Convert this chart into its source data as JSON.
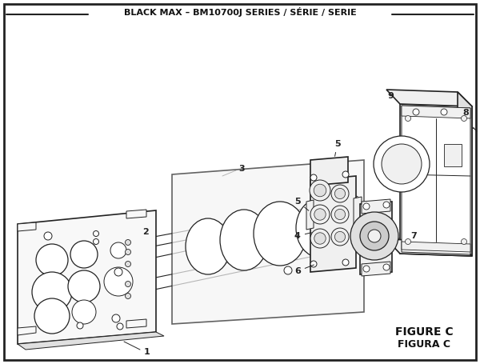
{
  "title": "BLACK MAX – BM10700J SERIES / SÉRIE / SERIE",
  "bg_color": "#ffffff",
  "border_color": "#222222",
  "text_color": "#111111",
  "figure_label": "FIGURE C",
  "figure_label2": "FIGURA C",
  "line_color": "#222222",
  "dark_gray": "#222222",
  "fill_light": "#f0f0f0",
  "fill_mid": "#e0e0e0",
  "fill_white": "#ffffff"
}
